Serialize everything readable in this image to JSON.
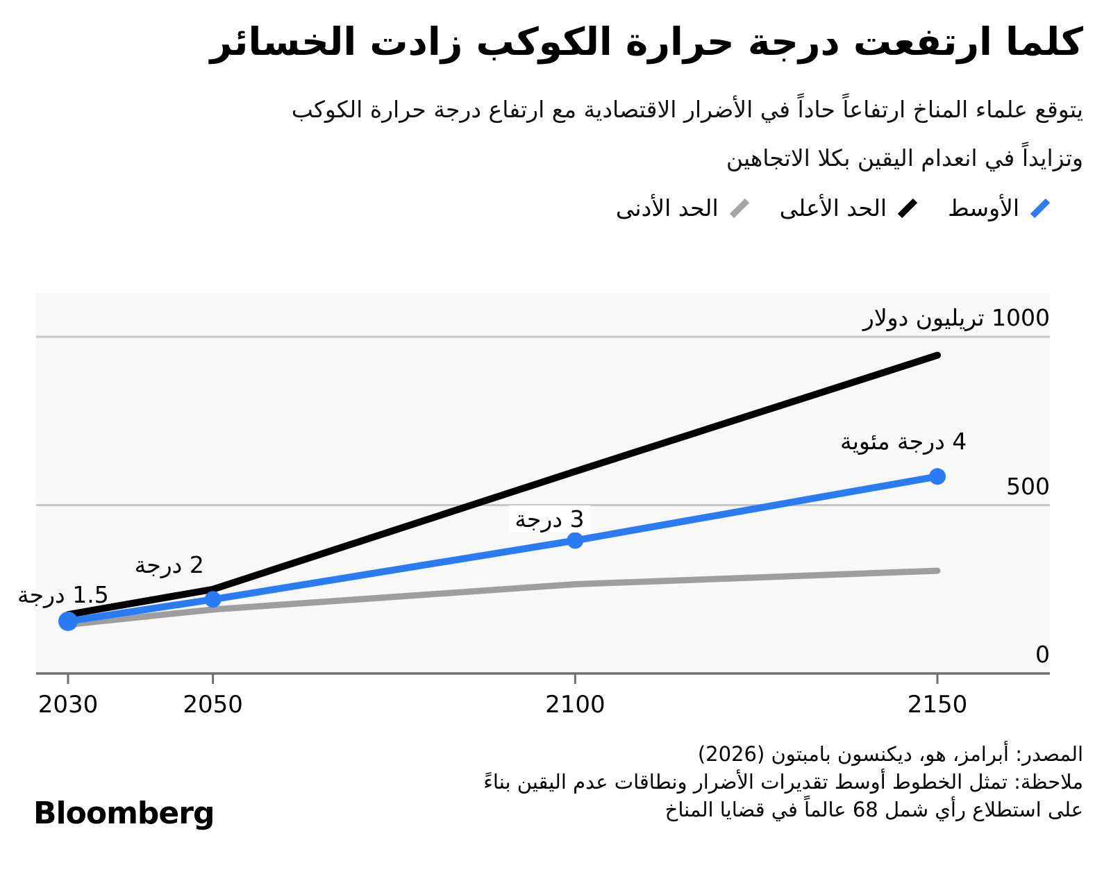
{
  "header": {
    "title": "كلما ارتفعت درجة حرارة الكوكب زادت الخسائر",
    "subtitle_line1": "يتوقع علماء المناخ ارتفاعاً حاداً في الأضرار الاقتصادية مع ارتفاع درجة حرارة الكوكب",
    "subtitle_line2": "وتزايداً في انعدام اليقين بكلا الاتجاهين"
  },
  "legend": {
    "items": [
      {
        "label": "الأوسط",
        "color": "#2b7cf2"
      },
      {
        "label": "الحد الأعلى",
        "color": "#000000"
      },
      {
        "label": "الحد الأدنى",
        "color": "#a5a5a5"
      }
    ]
  },
  "chart_data": {
    "type": "line",
    "x": [
      2030,
      2050,
      2100,
      2150
    ],
    "x_tick_labels": [
      "2030",
      "2050",
      "2100",
      "2150"
    ],
    "y_ticks": [
      0,
      500,
      1000
    ],
    "y_tick_labels": [
      "0",
      "500",
      "1000 تريليون دولار"
    ],
    "ylim": [
      0,
      1150
    ],
    "grid": "horizontal-only",
    "legend_position": "top-right",
    "series": [
      {
        "name": "الأوسط",
        "color": "#2b7cf2",
        "values": [
          155,
          220,
          395,
          585
        ],
        "markers": true
      },
      {
        "name": "الحد الأعلى",
        "color": "#000000",
        "values": [
          175,
          250,
          600,
          945
        ],
        "markers": false
      },
      {
        "name": "الحد الأدنى",
        "color": "#9e9e9e",
        "values": [
          145,
          190,
          265,
          305
        ],
        "markers": false
      }
    ],
    "point_labels": [
      {
        "text": "1.5 درجة",
        "x": 2030
      },
      {
        "text": "2 درجة",
        "x": 2050
      },
      {
        "text": "3 درجة",
        "x": 2100
      },
      {
        "text": "4 درجة مئوية",
        "x": 2150
      }
    ]
  },
  "footer": {
    "source": "المصدر: أبرامز، هو، ديكنسون بامبتون (2026)",
    "note_line1": "ملاحظة: تمثل الخطوط أوسط تقديرات الأضرار ونطاقات عدم اليقين بناءً",
    "note_line2": "على استطلاع رأي شمل 68 عالماً في قضايا المناخ",
    "brand": "Bloomberg"
  }
}
